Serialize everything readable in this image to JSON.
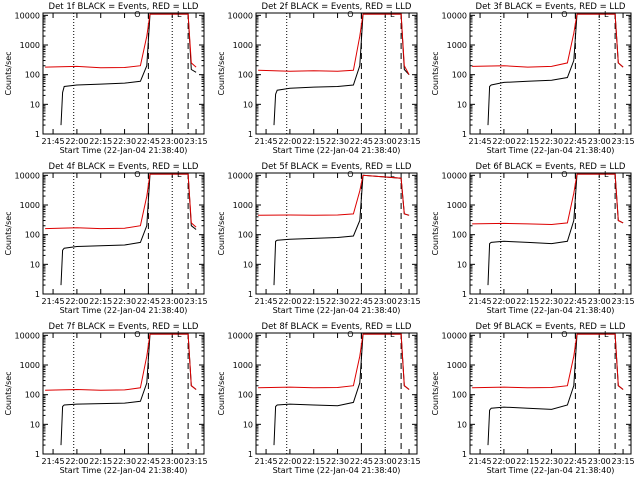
{
  "figure": {
    "background": "#ffffff",
    "colors": {
      "events": "#000000",
      "lld": "#dd0000",
      "axes": "#000000"
    }
  },
  "chart_data": [
    {
      "type": "line",
      "title": "Det 1f BLACK = Events, RED = LLD",
      "xlabel": "Start Time (22-Jan-04 21:38:40)",
      "ylabel": "Counts/sec",
      "yscale": "log",
      "ylim": [
        1,
        12000
      ],
      "xlim": [
        "21:38:40",
        "23:20"
      ],
      "xticks": [
        "21:45",
        "22:00",
        "22:15",
        "22:30",
        "22:45",
        "23:00",
        "23:15"
      ],
      "yticks": [
        "1",
        "10",
        "100",
        "1000",
        "10000"
      ],
      "dotted_lines": [
        "21:58",
        "23:00"
      ],
      "dashed_lines": [
        "22:45",
        "23:10"
      ],
      "markers": [
        "O",
        "L"
      ],
      "series": [
        {
          "name": "Events",
          "color": "#000000",
          "x": [
            "21:50",
            "21:51",
            "21:52",
            "22:00",
            "22:15",
            "22:30",
            "22:40",
            "22:44",
            "22:46",
            "23:10",
            "23:12",
            "23:15"
          ],
          "y": [
            2,
            25,
            40,
            45,
            48,
            52,
            60,
            200,
            11000,
            11000,
            150,
            120
          ]
        },
        {
          "name": "LLD",
          "color": "#dd0000",
          "x": [
            "21:40",
            "22:00",
            "22:15",
            "22:30",
            "22:40",
            "22:44",
            "22:46",
            "23:10",
            "23:12",
            "23:15"
          ],
          "y": [
            180,
            190,
            170,
            175,
            200,
            2000,
            11000,
            11000,
            250,
            180
          ]
        }
      ]
    },
    {
      "type": "line",
      "title": "Det 2f BLACK = Events, RED = LLD",
      "xlabel": "Start Time (22-Jan-04 21:38:40)",
      "ylabel": "Counts/sec",
      "yscale": "log",
      "ylim": [
        1,
        12000
      ],
      "xlim": [
        "21:38:40",
        "23:20"
      ],
      "xticks": [
        "21:45",
        "22:00",
        "22:15",
        "22:30",
        "22:45",
        "23:00",
        "23:15"
      ],
      "yticks": [
        "1",
        "10",
        "100",
        "1000",
        "10000"
      ],
      "dotted_lines": [
        "21:58",
        "23:00"
      ],
      "dashed_lines": [
        "22:45",
        "23:10"
      ],
      "markers": [
        "O",
        "L"
      ],
      "series": [
        {
          "name": "Events",
          "color": "#000000",
          "x": [
            "21:50",
            "21:51",
            "21:52",
            "22:00",
            "22:15",
            "22:30",
            "22:40",
            "22:44",
            "22:46",
            "23:10",
            "23:12",
            "23:15"
          ],
          "y": [
            2,
            22,
            30,
            35,
            38,
            40,
            45,
            200,
            11000,
            11000,
            150,
            100
          ]
        },
        {
          "name": "LLD",
          "color": "#dd0000",
          "x": [
            "21:40",
            "22:00",
            "22:15",
            "22:30",
            "22:40",
            "22:44",
            "22:46",
            "23:10",
            "23:12",
            "23:15"
          ],
          "y": [
            140,
            130,
            135,
            130,
            140,
            2000,
            11000,
            11000,
            200,
            100
          ]
        }
      ]
    },
    {
      "type": "line",
      "title": "Det 3f BLACK = Events, RED = LLD",
      "xlabel": "Start Time (22-Jan-04 21:38:40)",
      "ylabel": "Counts/sec",
      "yscale": "log",
      "ylim": [
        1,
        12000
      ],
      "xlim": [
        "21:38:40",
        "23:20"
      ],
      "xticks": [
        "21:45",
        "22:00",
        "22:15",
        "22:30",
        "22:45",
        "23:00",
        "23:15"
      ],
      "yticks": [
        "1",
        "10",
        "100",
        "1000",
        "10000"
      ],
      "dotted_lines": [
        "21:58",
        "23:00"
      ],
      "dashed_lines": [
        "22:45",
        "23:10"
      ],
      "markers": [
        "O",
        "L"
      ],
      "series": [
        {
          "name": "Events",
          "color": "#000000",
          "x": [
            "21:50",
            "21:51",
            "21:52",
            "22:00",
            "22:15",
            "22:30",
            "22:40",
            "22:44",
            "22:46",
            "23:10",
            "23:12",
            "23:15"
          ],
          "y": [
            2,
            40,
            45,
            55,
            60,
            65,
            80,
            300,
            11000,
            11000,
            250,
            180
          ]
        },
        {
          "name": "LLD",
          "color": "#dd0000",
          "x": [
            "21:40",
            "22:00",
            "22:15",
            "22:30",
            "22:40",
            "22:44",
            "22:46",
            "23:10",
            "23:12",
            "23:15"
          ],
          "y": [
            190,
            200,
            180,
            190,
            250,
            2500,
            11000,
            11000,
            250,
            180
          ]
        }
      ]
    },
    {
      "type": "line",
      "title": "Det 4f BLACK = Events, RED = LLD",
      "xlabel": "Start Time (22-Jan-04 21:38:40)",
      "ylabel": "Counts/sec",
      "yscale": "log",
      "ylim": [
        1,
        12000
      ],
      "xlim": [
        "21:38:40",
        "23:20"
      ],
      "xticks": [
        "21:45",
        "22:00",
        "22:15",
        "22:30",
        "22:45",
        "23:00",
        "23:15"
      ],
      "yticks": [
        "1",
        "10",
        "100",
        "1000",
        "10000"
      ],
      "dotted_lines": [
        "21:58",
        "23:00"
      ],
      "dashed_lines": [
        "22:45",
        "23:10"
      ],
      "markers": [
        "O",
        "L"
      ],
      "series": [
        {
          "name": "Events",
          "color": "#000000",
          "x": [
            "21:50",
            "21:51",
            "21:52",
            "22:00",
            "22:15",
            "22:30",
            "22:40",
            "22:44",
            "22:46",
            "23:10",
            "23:12",
            "23:15"
          ],
          "y": [
            2,
            30,
            35,
            40,
            42,
            45,
            55,
            200,
            11000,
            11000,
            200,
            150
          ]
        },
        {
          "name": "LLD",
          "color": "#dd0000",
          "x": [
            "21:40",
            "22:00",
            "22:15",
            "22:30",
            "22:40",
            "22:44",
            "22:46",
            "23:10",
            "23:12",
            "23:15"
          ],
          "y": [
            160,
            170,
            160,
            165,
            200,
            2000,
            11000,
            11000,
            250,
            180
          ]
        }
      ]
    },
    {
      "type": "line",
      "title": "Det 5f BLACK = Events, RED = LLD",
      "xlabel": "Start Time (22-Jan-04 21:38:40)",
      "ylabel": "Counts/sec",
      "yscale": "log",
      "ylim": [
        1,
        12000
      ],
      "xlim": [
        "21:38:40",
        "23:20"
      ],
      "xticks": [
        "21:45",
        "22:00",
        "22:15",
        "22:30",
        "22:45",
        "23:00",
        "23:15"
      ],
      "yticks": [
        "1",
        "10",
        "100",
        "1000",
        "10000"
      ],
      "dotted_lines": [
        "21:58",
        "23:00"
      ],
      "dashed_lines": [
        "22:45",
        "23:10"
      ],
      "markers": [
        "O",
        "L"
      ],
      "series": [
        {
          "name": "Events",
          "color": "#000000",
          "x": [
            "21:50",
            "21:51",
            "21:52",
            "22:00",
            "22:15",
            "22:30",
            "22:40",
            "22:44",
            "22:46",
            "23:10",
            "23:12",
            "23:15"
          ],
          "y": [
            2,
            60,
            65,
            70,
            75,
            80,
            90,
            300,
            10000,
            8000,
            500,
            450
          ]
        },
        {
          "name": "LLD",
          "color": "#dd0000",
          "x": [
            "21:40",
            "22:00",
            "22:15",
            "22:30",
            "22:40",
            "22:44",
            "22:46",
            "23:10",
            "23:12",
            "23:15"
          ],
          "y": [
            450,
            460,
            450,
            460,
            500,
            3000,
            10000,
            8000,
            500,
            450
          ]
        }
      ]
    },
    {
      "type": "line",
      "title": "Det 6f BLACK = Events, RED = LLD",
      "xlabel": "Start Time (22-Jan-04 21:38:40)",
      "ylabel": "Counts/sec",
      "yscale": "log",
      "ylim": [
        1,
        12000
      ],
      "xlim": [
        "21:38:40",
        "23:20"
      ],
      "xticks": [
        "21:45",
        "22:00",
        "22:15",
        "22:30",
        "22:45",
        "23:00",
        "23:15"
      ],
      "yticks": [
        "1",
        "10",
        "100",
        "1000",
        "10000"
      ],
      "dotted_lines": [
        "21:58",
        "23:00"
      ],
      "dashed_lines": [
        "22:45",
        "23:10"
      ],
      "markers": [
        "O",
        "L"
      ],
      "series": [
        {
          "name": "Events",
          "color": "#000000",
          "x": [
            "21:50",
            "21:51",
            "21:52",
            "22:00",
            "22:15",
            "22:30",
            "22:40",
            "22:44",
            "22:46",
            "23:10",
            "23:12",
            "23:15"
          ],
          "y": [
            2,
            50,
            55,
            60,
            55,
            50,
            60,
            300,
            11000,
            11000,
            300,
            250
          ]
        },
        {
          "name": "LLD",
          "color": "#dd0000",
          "x": [
            "21:40",
            "22:00",
            "22:15",
            "22:30",
            "22:40",
            "22:44",
            "22:46",
            "23:10",
            "23:12",
            "23:15"
          ],
          "y": [
            230,
            240,
            230,
            220,
            250,
            2500,
            11000,
            11000,
            300,
            250
          ]
        }
      ]
    },
    {
      "type": "line",
      "title": "Det 7f BLACK = Events, RED = LLD",
      "xlabel": "Start Time (22-Jan-04 21:38:40)",
      "ylabel": "Counts/sec",
      "yscale": "log",
      "ylim": [
        1,
        12000
      ],
      "xlim": [
        "21:38:40",
        "23:20"
      ],
      "xticks": [
        "21:45",
        "22:00",
        "22:15",
        "22:30",
        "22:45",
        "23:00",
        "23:15"
      ],
      "yticks": [
        "1",
        "10",
        "100",
        "1000",
        "10000"
      ],
      "dotted_lines": [
        "21:58",
        "23:00"
      ],
      "dashed_lines": [
        "22:45",
        "23:10"
      ],
      "markers": [
        "O",
        "L"
      ],
      "series": [
        {
          "name": "Events",
          "color": "#000000",
          "x": [
            "21:50",
            "21:51",
            "21:52",
            "22:00",
            "22:15",
            "22:30",
            "22:40",
            "22:44",
            "22:46",
            "23:10",
            "23:12",
            "23:15"
          ],
          "y": [
            2,
            40,
            45,
            48,
            50,
            52,
            60,
            250,
            11000,
            11000,
            200,
            150
          ]
        },
        {
          "name": "LLD",
          "color": "#dd0000",
          "x": [
            "21:40",
            "22:00",
            "22:15",
            "22:30",
            "22:40",
            "22:44",
            "22:46",
            "23:10",
            "23:12",
            "23:15"
          ],
          "y": [
            140,
            150,
            140,
            145,
            170,
            2000,
            11000,
            11000,
            200,
            150
          ]
        }
      ]
    },
    {
      "type": "line",
      "title": "Det 8f BLACK = Events, RED = LLD",
      "xlabel": "Start Time (22-Jan-04 21:38:40)",
      "ylabel": "Counts/sec",
      "yscale": "log",
      "ylim": [
        1,
        12000
      ],
      "xlim": [
        "21:38:40",
        "23:20"
      ],
      "xticks": [
        "21:45",
        "22:00",
        "22:15",
        "22:30",
        "22:45",
        "23:00",
        "23:15"
      ],
      "yticks": [
        "1",
        "10",
        "100",
        "1000",
        "10000"
      ],
      "dotted_lines": [
        "21:58",
        "23:00"
      ],
      "dashed_lines": [
        "22:45",
        "23:10"
      ],
      "markers": [
        "O",
        "L"
      ],
      "series": [
        {
          "name": "Events",
          "color": "#000000",
          "x": [
            "21:50",
            "21:51",
            "21:52",
            "22:00",
            "22:15",
            "22:30",
            "22:40",
            "22:44",
            "22:46",
            "23:10",
            "23:12",
            "23:15"
          ],
          "y": [
            2,
            40,
            45,
            48,
            45,
            42,
            55,
            250,
            11000,
            11000,
            200,
            150
          ]
        },
        {
          "name": "LLD",
          "color": "#dd0000",
          "x": [
            "21:40",
            "22:00",
            "22:15",
            "22:30",
            "22:40",
            "22:44",
            "22:46",
            "23:10",
            "23:12",
            "23:15"
          ],
          "y": [
            170,
            180,
            170,
            175,
            200,
            2000,
            11000,
            11000,
            200,
            150
          ]
        }
      ]
    },
    {
      "type": "line",
      "title": "Det 9f BLACK = Events, RED = LLD",
      "xlabel": "Start Time (22-Jan-04 21:38:40)",
      "ylabel": "Counts/sec",
      "yscale": "log",
      "ylim": [
        1,
        12000
      ],
      "xlim": [
        "21:38:40",
        "23:20"
      ],
      "xticks": [
        "21:45",
        "22:00",
        "22:15",
        "22:30",
        "22:45",
        "23:00",
        "23:15"
      ],
      "yticks": [
        "1",
        "10",
        "100",
        "1000",
        "10000"
      ],
      "dotted_lines": [
        "21:58",
        "23:00"
      ],
      "dashed_lines": [
        "22:45",
        "23:10"
      ],
      "markers": [
        "O",
        "L"
      ],
      "series": [
        {
          "name": "Events",
          "color": "#000000",
          "x": [
            "21:50",
            "21:51",
            "21:52",
            "22:00",
            "22:15",
            "22:30",
            "22:40",
            "22:44",
            "22:46",
            "23:10",
            "23:12",
            "23:15"
          ],
          "y": [
            2,
            30,
            35,
            38,
            35,
            32,
            45,
            200,
            11000,
            11000,
            200,
            150
          ]
        },
        {
          "name": "LLD",
          "color": "#dd0000",
          "x": [
            "21:40",
            "22:00",
            "22:15",
            "22:30",
            "22:40",
            "22:44",
            "22:46",
            "23:10",
            "23:12",
            "23:15"
          ],
          "y": [
            170,
            180,
            170,
            175,
            200,
            2000,
            11000,
            11000,
            200,
            150
          ]
        }
      ]
    }
  ]
}
